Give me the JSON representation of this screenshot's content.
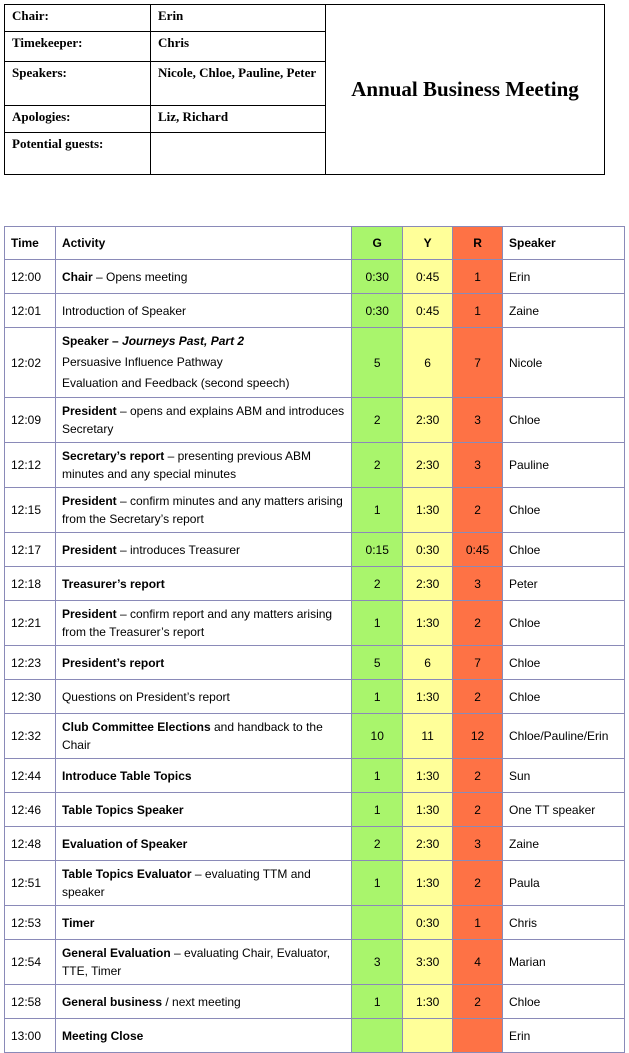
{
  "header": {
    "fields": [
      {
        "label": "Chair:",
        "value": "Erin"
      },
      {
        "label": "Timekeeper:",
        "value": "Chris"
      },
      {
        "label": "Speakers:",
        "value": "Nicole, Chloe, Pauline, Peter"
      },
      {
        "label": "Apologies:",
        "value": "Liz, Richard"
      },
      {
        "label": "Potential guests:",
        "value": null
      }
    ],
    "title": "Annual Business Meeting"
  },
  "table": {
    "columns": [
      "Time",
      "Activity",
      "G",
      "Y",
      "R",
      "Speaker"
    ],
    "zone_colors": [
      "#a9f56c",
      "#ffff99",
      "#fe7245"
    ],
    "rows": [
      {
        "time": "12:00",
        "activity": [
          [
            {
              "text": "Chair",
              "bold": true
            },
            {
              "text": " – Opens meeting"
            }
          ]
        ],
        "g": "0:30",
        "y": "0:45",
        "r": "1",
        "speaker": "Erin"
      },
      {
        "time": "12:01",
        "activity": [
          [
            {
              "text": "Introduction of Speaker"
            }
          ]
        ],
        "g": "0:30",
        "y": "0:45",
        "r": "1",
        "speaker": "Zaine"
      },
      {
        "time": "12:02",
        "activity": [
          [
            {
              "text": "Speaker – ",
              "bold": true
            },
            {
              "text": "Journeys Past, Part 2",
              "bold": true,
              "italic": true
            }
          ],
          [
            {
              "text": "Persuasive Influence Pathway"
            }
          ],
          [
            {
              "text": "Evaluation and Feedback (second speech)"
            }
          ]
        ],
        "g": "5",
        "y": "6",
        "r": "7",
        "speaker": "Nicole"
      },
      {
        "time": "12:09",
        "activity": [
          [
            {
              "text": "President",
              "bold": true
            },
            {
              "text": " – opens and explains ABM and introduces Secretary"
            }
          ]
        ],
        "g": "2",
        "y": "2:30",
        "r": "3",
        "speaker": "Chloe"
      },
      {
        "time": "12:12",
        "activity": [
          [
            {
              "text": "Secretary’s report",
              "bold": true
            },
            {
              "text": " – presenting previous ABM minutes and any special minutes"
            }
          ]
        ],
        "g": "2",
        "y": "2:30",
        "r": "3",
        "speaker": "Pauline"
      },
      {
        "time": "12:15",
        "activity": [
          [
            {
              "text": "President",
              "bold": true
            },
            {
              "text": " – confirm minutes and any matters arising from the Secretary’s report"
            }
          ]
        ],
        "g": "1",
        "y": "1:30",
        "r": "2",
        "speaker": "Chloe"
      },
      {
        "time": "12:17",
        "activity": [
          [
            {
              "text": "President",
              "bold": true
            },
            {
              "text": " – introduces Treasurer"
            }
          ]
        ],
        "g": "0:15",
        "y": "0:30",
        "r": "0:45",
        "speaker": "Chloe"
      },
      {
        "time": "12:18",
        "activity": [
          [
            {
              "text": "Treasurer’s report",
              "bold": true
            }
          ]
        ],
        "g": "2",
        "y": "2:30",
        "r": "3",
        "speaker": "Peter"
      },
      {
        "time": "12:21",
        "activity": [
          [
            {
              "text": "President",
              "bold": true
            },
            {
              "text": " – confirm report and any matters arising from the Treasurer’s report"
            }
          ]
        ],
        "g": "1",
        "y": "1:30",
        "r": "2",
        "speaker": "Chloe"
      },
      {
        "time": "12:23",
        "activity": [
          [
            {
              "text": "President’s report",
              "bold": true
            }
          ]
        ],
        "g": "5",
        "y": "6",
        "r": "7",
        "speaker": "Chloe"
      },
      {
        "time": "12:30",
        "activity": [
          [
            {
              "text": "Questions on President’s report"
            }
          ]
        ],
        "g": "1",
        "y": "1:30",
        "r": "2",
        "speaker": "Chloe"
      },
      {
        "time": "12:32",
        "activity": [
          [
            {
              "text": "Club Committee Elections",
              "bold": true
            },
            {
              "text": " and handback to the Chair"
            }
          ]
        ],
        "g": "10",
        "y": "11",
        "r": "12",
        "speaker": "Chloe/Pauline/Erin"
      },
      {
        "time": "12:44",
        "activity": [
          [
            {
              "text": "Introduce Table Topics",
              "bold": true
            }
          ]
        ],
        "g": "1",
        "y": "1:30",
        "r": "2",
        "speaker": "Sun"
      },
      {
        "time": "12:46",
        "activity": [
          [
            {
              "text": "Table Topics Speaker",
              "bold": true
            }
          ]
        ],
        "g": "1",
        "y": "1:30",
        "r": "2",
        "speaker": "One TT speaker"
      },
      {
        "time": "12:48",
        "activity": [
          [
            {
              "text": "Evaluation of Speaker",
              "bold": true
            }
          ]
        ],
        "g": "2",
        "y": "2:30",
        "r": "3",
        "speaker": "Zaine"
      },
      {
        "time": "12:51",
        "activity": [
          [
            {
              "text": "Table Topics Evaluator",
              "bold": true
            },
            {
              "text": " – evaluating TTM and speaker"
            }
          ]
        ],
        "g": "1",
        "y": "1:30",
        "r": "2",
        "speaker": "Paula"
      },
      {
        "time": "12:53",
        "activity": [
          [
            {
              "text": "Timer",
              "bold": true
            }
          ]
        ],
        "g": null,
        "y": "0:30",
        "r": "1",
        "speaker": "Chris"
      },
      {
        "time": "12:54",
        "activity": [
          [
            {
              "text": "General Evaluation",
              "bold": true
            },
            {
              "text": " – evaluating Chair, Evaluator, TTE, Timer"
            }
          ]
        ],
        "g": "3",
        "y": "3:30",
        "r": "4",
        "speaker": "Marian"
      },
      {
        "time": "12:58",
        "activity": [
          [
            {
              "text": "General business",
              "bold": true
            },
            {
              "text": " / next meeting"
            }
          ]
        ],
        "g": "1",
        "y": "1:30",
        "r": "2",
        "speaker": "Chloe"
      },
      {
        "time": "13:00",
        "activity": [
          [
            {
              "text": "Meeting Close",
              "bold": true
            }
          ]
        ],
        "g": null,
        "y": null,
        "r": null,
        "speaker": "Erin"
      }
    ]
  }
}
